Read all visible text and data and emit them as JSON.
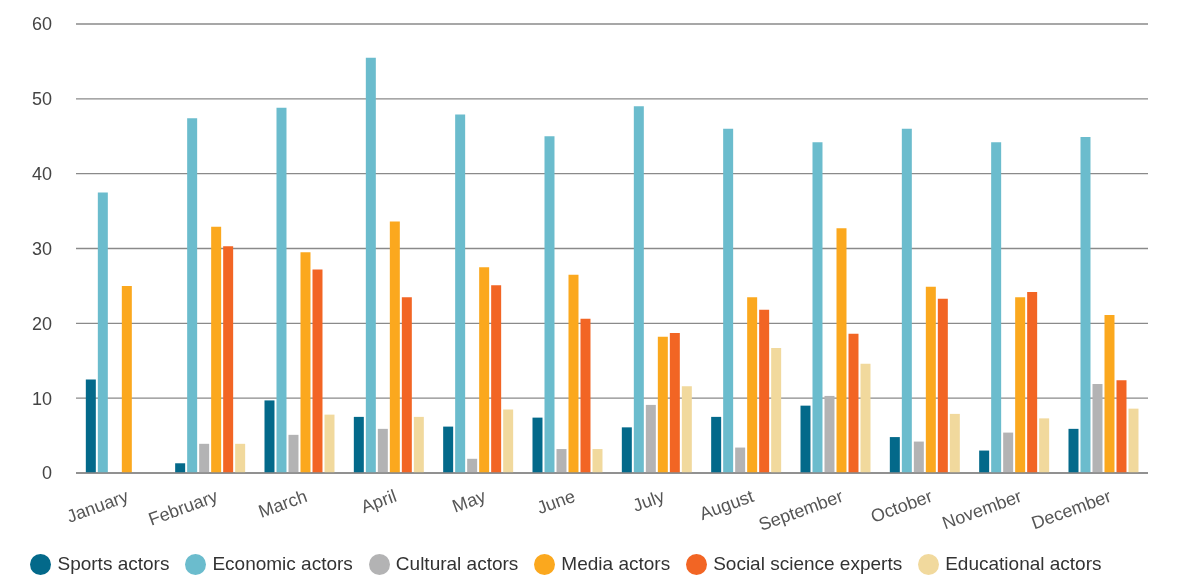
{
  "chart_data": {
    "type": "bar",
    "categories": [
      "January",
      "February",
      "March",
      "April",
      "May",
      "June",
      "July",
      "August",
      "September",
      "October",
      "November",
      "December"
    ],
    "series": [
      {
        "name": "Sports actors",
        "color": "#03698a",
        "values": [
          12.5,
          1.3,
          9.7,
          7.5,
          6.2,
          7.4,
          6.1,
          7.5,
          9.0,
          4.8,
          3.0,
          5.9
        ]
      },
      {
        "name": "Economic actors",
        "color": "#6bbccd",
        "values": [
          37.5,
          47.4,
          48.8,
          55.5,
          47.9,
          45.0,
          49.0,
          46.0,
          44.2,
          46.0,
          44.2,
          44.9
        ]
      },
      {
        "name": "Cultural actors",
        "color": "#b3b3b4",
        "values": [
          null,
          3.9,
          5.1,
          5.9,
          1.9,
          3.2,
          9.1,
          3.4,
          10.3,
          4.2,
          5.4,
          11.9
        ]
      },
      {
        "name": "Media actors",
        "color": "#fba81e",
        "values": [
          25.0,
          32.9,
          29.5,
          33.6,
          27.5,
          26.5,
          18.2,
          23.5,
          32.7,
          24.9,
          23.5,
          21.1
        ]
      },
      {
        "name": "Social science experts",
        "color": "#f26524",
        "values": [
          null,
          30.3,
          27.2,
          23.5,
          25.1,
          20.6,
          18.7,
          21.8,
          18.6,
          23.3,
          24.2,
          12.4
        ]
      },
      {
        "name": "Educational actors",
        "color": "#f1d99d",
        "values": [
          null,
          3.9,
          7.8,
          7.5,
          8.5,
          3.2,
          11.6,
          16.7,
          14.6,
          7.9,
          7.3,
          8.6
        ]
      }
    ],
    "ylim": [
      0,
      60
    ],
    "yticks": [
      0,
      10,
      20,
      30,
      40,
      50,
      60
    ],
    "grid": "y",
    "legend": "bottom"
  }
}
